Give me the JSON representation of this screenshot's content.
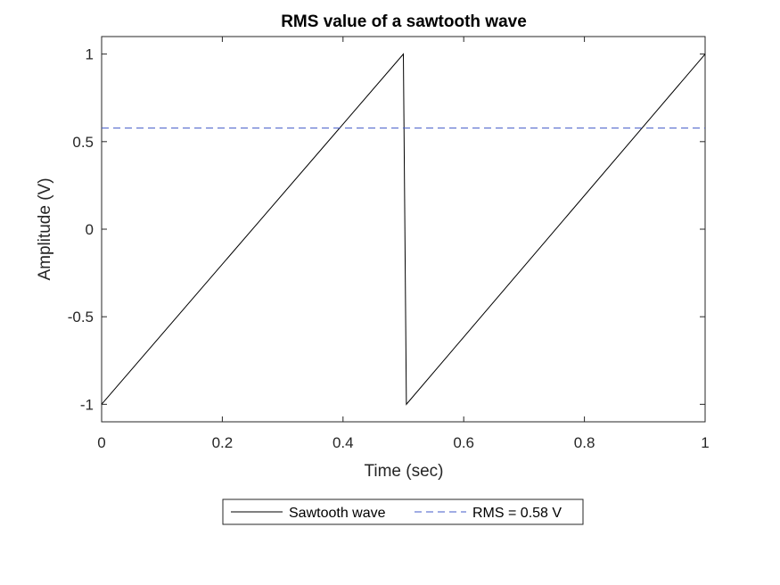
{
  "chart_data": {
    "type": "line",
    "title": "RMS value of a sawtooth wave",
    "xlabel": "Time (sec)",
    "ylabel": "Amplitude (V)",
    "xlim": [
      0,
      1
    ],
    "ylim": [
      -1.1,
      1.1
    ],
    "x_ticks": [
      0,
      0.2,
      0.4,
      0.6,
      0.8,
      1
    ],
    "x_tick_labels": [
      "0",
      "0.2",
      "0.4",
      "0.6",
      "0.8",
      "1"
    ],
    "y_ticks": [
      -1,
      -0.5,
      0,
      0.5,
      1
    ],
    "y_tick_labels": [
      "-1",
      "-0.5",
      "0",
      "0.5",
      "1"
    ],
    "grid": false,
    "legend_position": "bottom-outside",
    "series": [
      {
        "name": "Sawtooth wave",
        "style": "solid",
        "color": "#000000",
        "x": [
          0,
          0.5,
          0.505,
          1
        ],
        "y": [
          -1,
          1,
          -1,
          1
        ]
      },
      {
        "name": "RMS = 0.58 V",
        "style": "dashed",
        "color": "#4059c8",
        "x": [
          0,
          1
        ],
        "y": [
          0.5774,
          0.5774
        ]
      }
    ]
  }
}
